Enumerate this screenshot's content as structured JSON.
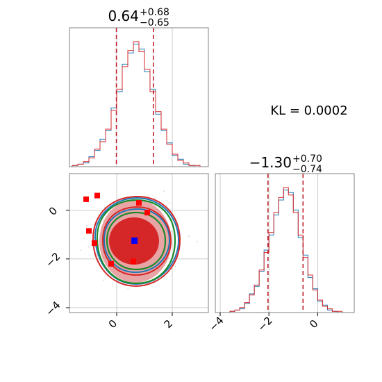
{
  "chart_data": {
    "type": "corner",
    "kl_label": "KL = 0.0002",
    "colors": {
      "blue": "#1f77b4",
      "red": "#d62728",
      "green": "#1a8a2a",
      "fill": "#d62728",
      "marker_blue": "#0000ff",
      "marker_red": "#ff0000"
    },
    "param1": {
      "title_value": "0.64",
      "title_plus": "+0.68",
      "title_minus": "−0.65",
      "median": 0.64,
      "lower": -0.01,
      "upper": 1.32,
      "xlim": [
        -1.7,
        3.3
      ],
      "ticks": [
        0,
        2
      ],
      "tick_labels": [
        "0",
        "2"
      ],
      "grid_x": [
        0,
        2
      ],
      "hist_bins": [
        -1.6,
        -1.4,
        -1.2,
        -1.0,
        -0.8,
        -0.6,
        -0.4,
        -0.2,
        0.0,
        0.2,
        0.4,
        0.6,
        0.8,
        1.0,
        1.2,
        1.4,
        1.6,
        1.8,
        2.0,
        2.2,
        2.4,
        2.6,
        2.8,
        3.0
      ],
      "hist_red": [
        1,
        2,
        4,
        7,
        14,
        20,
        30,
        45,
        62,
        80,
        93,
        100,
        92,
        78,
        60,
        44,
        30,
        18,
        10,
        5,
        3,
        1,
        1
      ],
      "hist_blue": [
        1,
        2,
        3,
        8,
        13,
        22,
        29,
        47,
        60,
        82,
        91,
        98,
        94,
        76,
        62,
        42,
        29,
        19,
        9,
        6,
        2,
        1,
        0
      ]
    },
    "param2": {
      "title_value": "−1.30",
      "title_plus": "+0.70",
      "title_minus": "−0.74",
      "median": -1.3,
      "lower": -2.04,
      "upper": -0.6,
      "xlim": [
        -4.2,
        1.5
      ],
      "ticks": [
        -4,
        -2,
        0
      ],
      "tick_labels": [
        "−4",
        "−2",
        "0"
      ],
      "grid_x": [
        -4,
        -2,
        0
      ],
      "hist_bins": [
        -3.6,
        -3.4,
        -3.2,
        -3.0,
        -2.8,
        -2.6,
        -2.4,
        -2.2,
        -2.0,
        -1.8,
        -1.6,
        -1.4,
        -1.2,
        -1.0,
        -0.8,
        -0.6,
        -0.4,
        -0.2,
        0.0,
        0.2,
        0.4,
        0.6,
        0.8,
        1.0
      ],
      "hist_red": [
        1,
        2,
        4,
        8,
        14,
        22,
        34,
        48,
        64,
        80,
        92,
        100,
        94,
        80,
        62,
        44,
        30,
        18,
        10,
        5,
        3,
        1,
        1
      ],
      "hist_blue": [
        1,
        2,
        3,
        7,
        15,
        21,
        33,
        50,
        62,
        78,
        90,
        98,
        96,
        82,
        60,
        46,
        28,
        19,
        9,
        6,
        2,
        1,
        0
      ]
    },
    "joint": {
      "xlim": [
        -1.7,
        3.3
      ],
      "ylim": [
        -4.2,
        1.5
      ],
      "x_ticks": [
        0,
        2
      ],
      "x_tick_labels": [
        "0",
        "2"
      ],
      "y_ticks": [
        0,
        -2,
        -4
      ],
      "y_tick_labels": [
        "0",
        "−2",
        "−4"
      ],
      "blue_point": [
        0.64,
        -1.25
      ],
      "red_points": [
        [
          -1.1,
          0.45
        ],
        [
          -0.7,
          0.6
        ],
        [
          -1.0,
          -0.85
        ],
        [
          -0.8,
          -1.35
        ],
        [
          0.8,
          0.3
        ],
        [
          0.6,
          -2.1
        ],
        [
          1.1,
          -0.1
        ],
        [
          -0.2,
          -2.2
        ]
      ]
    }
  }
}
